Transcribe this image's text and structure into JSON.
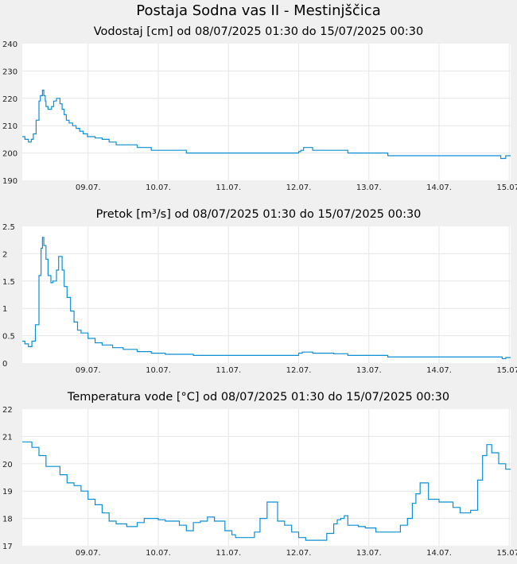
{
  "title": "Postaja Sodna vas II - Mestinjščica",
  "colors": {
    "line": "#0a8fd6",
    "plot_bg": "#ffffff",
    "grid": "#e6e6e6",
    "page_bg": "#f0f0f0"
  },
  "chart_data": [
    {
      "type": "line",
      "title": "Vodostaj [cm] od 08/07/2025 01:30 do 15/07/2025 00:30",
      "ylim": [
        190,
        240
      ],
      "yticks": [
        "190",
        "200",
        "210",
        "220",
        "230",
        "240"
      ],
      "xlim": [
        0.0625,
        7.02
      ],
      "xticks": [
        {
          "x": 1,
          "label": "09.07."
        },
        {
          "x": 2,
          "label": "10.07."
        },
        {
          "x": 3,
          "label": "11.07."
        },
        {
          "x": 4,
          "label": "12.07."
        },
        {
          "x": 5,
          "label": "13.07."
        },
        {
          "x": 6,
          "label": "14.07."
        },
        {
          "x": 7,
          "label": "15.07."
        }
      ],
      "grid": true,
      "series": [
        {
          "x": [
            0.0625,
            0.1,
            0.15,
            0.19,
            0.22,
            0.26,
            0.3,
            0.32,
            0.35,
            0.37,
            0.39,
            0.4,
            0.43,
            0.45,
            0.48,
            0.51,
            0.55,
            0.6,
            0.63,
            0.66,
            0.69,
            0.73,
            0.78,
            0.83,
            0.88,
            0.93,
            0.99,
            1.1,
            1.2,
            1.3,
            1.4,
            1.55,
            1.7,
            1.9,
            2.1,
            2.4,
            3.0,
            3.5,
            3.9,
            4.0,
            4.03,
            4.07,
            4.15,
            4.2,
            4.4,
            4.65,
            4.7,
            5.0,
            5.22,
            5.27,
            5.5,
            6.0,
            6.5,
            6.8,
            6.88,
            6.9,
            6.95,
            7.02
          ],
          "y": [
            206,
            205,
            204,
            205,
            207,
            212,
            219,
            221,
            223,
            221,
            219,
            217,
            216,
            216,
            217,
            219,
            220,
            218,
            216,
            214,
            212,
            211,
            210,
            209,
            208,
            207,
            206,
            205.5,
            205,
            204,
            203,
            203,
            202,
            201,
            201,
            200,
            200,
            200,
            200,
            200.5,
            201,
            202,
            202,
            201,
            201,
            201,
            200,
            200,
            200,
            199,
            199,
            199,
            199,
            199,
            198,
            198,
            199,
            199
          ]
        }
      ]
    },
    {
      "type": "line",
      "title": "Pretok [m³/s] od 08/07/2025 01:30 do 15/07/2025 00:30",
      "ylim": [
        0,
        2.5
      ],
      "yticks": [
        "0",
        "0.5",
        "1",
        "1.5",
        "2",
        "2.5"
      ],
      "xlim": [
        0.0625,
        7.02
      ],
      "xticks": [
        {
          "x": 1,
          "label": "09.07."
        },
        {
          "x": 2,
          "label": "10.07."
        },
        {
          "x": 3,
          "label": "11.07."
        },
        {
          "x": 4,
          "label": "12.07."
        },
        {
          "x": 5,
          "label": "13.07."
        },
        {
          "x": 6,
          "label": "14.07."
        },
        {
          "x": 7,
          "label": "15.07."
        }
      ],
      "grid": true,
      "series": [
        {
          "x": [
            0.0625,
            0.1,
            0.15,
            0.2,
            0.25,
            0.3,
            0.33,
            0.35,
            0.37,
            0.4,
            0.43,
            0.47,
            0.5,
            0.55,
            0.58,
            0.6,
            0.63,
            0.66,
            0.7,
            0.75,
            0.8,
            0.85,
            0.9,
            1.0,
            1.1,
            1.2,
            1.35,
            1.5,
            1.7,
            1.9,
            2.1,
            2.5,
            3.0,
            3.5,
            3.95,
            4.0,
            4.05,
            4.1,
            4.15,
            4.2,
            4.5,
            4.65,
            4.7,
            5.0,
            5.22,
            5.27,
            5.5,
            6.0,
            6.5,
            6.85,
            6.9,
            6.95,
            7.02
          ],
          "y": [
            0.4,
            0.35,
            0.3,
            0.4,
            0.7,
            1.6,
            2.1,
            2.3,
            2.15,
            1.9,
            1.6,
            1.47,
            1.5,
            1.7,
            1.95,
            1.95,
            1.7,
            1.4,
            1.2,
            0.95,
            0.75,
            0.6,
            0.55,
            0.45,
            0.37,
            0.33,
            0.28,
            0.25,
            0.21,
            0.18,
            0.16,
            0.14,
            0.14,
            0.14,
            0.14,
            0.18,
            0.2,
            0.2,
            0.2,
            0.18,
            0.17,
            0.17,
            0.14,
            0.14,
            0.14,
            0.11,
            0.11,
            0.11,
            0.11,
            0.11,
            0.08,
            0.1,
            0.1
          ]
        }
      ]
    },
    {
      "type": "line",
      "title": "Temperatura vode [°C] od 08/07/2025 01:30 do 15/07/2025 00:30",
      "ylim": [
        17,
        22
      ],
      "yticks": [
        "17",
        "18",
        "19",
        "20",
        "21",
        "22"
      ],
      "xlim": [
        0.0625,
        7.02
      ],
      "xticks": [
        {
          "x": 1,
          "label": "09.07."
        },
        {
          "x": 2,
          "label": "10.07."
        },
        {
          "x": 3,
          "label": "11.07."
        },
        {
          "x": 4,
          "label": "12.07."
        },
        {
          "x": 5,
          "label": "13.07."
        },
        {
          "x": 6,
          "label": "14.07."
        },
        {
          "x": 7,
          "label": "15.07."
        }
      ],
      "grid": true,
      "series": [
        {
          "x": [
            0.0625,
            0.1,
            0.2,
            0.3,
            0.4,
            0.5,
            0.6,
            0.7,
            0.8,
            0.9,
            1.0,
            1.1,
            1.2,
            1.3,
            1.4,
            1.55,
            1.7,
            1.8,
            2.0,
            2.1,
            2.2,
            2.3,
            2.4,
            2.5,
            2.6,
            2.7,
            2.8,
            2.95,
            3.05,
            3.1,
            3.2,
            3.3,
            3.37,
            3.45,
            3.55,
            3.7,
            3.8,
            3.9,
            4.0,
            4.1,
            4.2,
            4.3,
            4.4,
            4.5,
            4.55,
            4.6,
            4.65,
            4.7,
            4.85,
            4.95,
            5.1,
            5.3,
            5.45,
            5.55,
            5.62,
            5.67,
            5.73,
            5.85,
            6.0,
            6.1,
            6.2,
            6.3,
            6.35,
            6.45,
            6.55,
            6.62,
            6.68,
            6.75,
            6.85,
            6.95,
            7.02
          ],
          "y": [
            20.8,
            20.8,
            20.6,
            20.3,
            19.9,
            19.9,
            19.6,
            19.3,
            19.2,
            19.0,
            18.7,
            18.5,
            18.2,
            17.9,
            17.8,
            17.7,
            17.85,
            18.0,
            17.95,
            17.9,
            17.9,
            17.75,
            17.55,
            17.85,
            17.9,
            18.05,
            17.9,
            17.55,
            17.4,
            17.3,
            17.3,
            17.3,
            17.5,
            18.0,
            18.6,
            17.9,
            17.75,
            17.5,
            17.3,
            17.2,
            17.2,
            17.2,
            17.45,
            17.8,
            17.95,
            18.0,
            18.1,
            17.75,
            17.7,
            17.65,
            17.5,
            17.5,
            17.75,
            18.0,
            18.55,
            18.9,
            19.3,
            18.7,
            18.6,
            18.6,
            18.4,
            18.2,
            18.2,
            18.3,
            19.4,
            20.3,
            20.7,
            20.4,
            20.0,
            19.8,
            19.8
          ]
        }
      ]
    }
  ]
}
